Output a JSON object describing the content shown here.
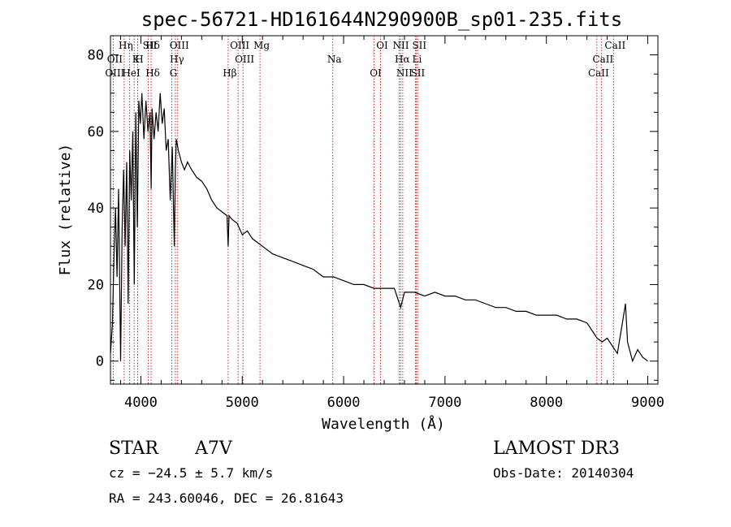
{
  "chart_data": {
    "type": "line",
    "title": "spec-56721-HD161644N290900B_sp01-235.fits",
    "xlabel": "Wavelength (Å)",
    "ylabel": "Flux (relative)",
    "xlim": [
      3700,
      9100
    ],
    "ylim": [
      -6,
      85
    ],
    "x_ticks": [
      4000,
      5000,
      6000,
      7000,
      8000,
      9000
    ],
    "y_ticks": [
      0,
      20,
      40,
      60,
      80
    ],
    "grid": false,
    "series": [
      {
        "x": [
          3700,
          3720,
          3735,
          3750,
          3765,
          3780,
          3800,
          3815,
          3830,
          3845,
          3860,
          3875,
          3890,
          3905,
          3920,
          3935,
          3950,
          3965,
          3980,
          3995,
          4010,
          4030,
          4050,
          4070,
          4090,
          4101,
          4110,
          4130,
          4150,
          4170,
          4190,
          4210,
          4230,
          4250,
          4270,
          4290,
          4310,
          4330,
          4340,
          4350,
          4370,
          4400,
          4430,
          4460,
          4500,
          4550,
          4600,
          4650,
          4700,
          4750,
          4800,
          4850,
          4861,
          4870,
          4900,
          4950,
          5000,
          5050,
          5100,
          5150,
          5200,
          5300,
          5400,
          5500,
          5600,
          5700,
          5800,
          5900,
          6000,
          6100,
          6200,
          6300,
          6400,
          6500,
          6563,
          6600,
          6700,
          6800,
          6900,
          7000,
          7100,
          7200,
          7300,
          7400,
          7500,
          7600,
          7700,
          7800,
          7900,
          8000,
          8100,
          8200,
          8300,
          8400,
          8450,
          8500,
          8550,
          8600,
          8650,
          8700,
          8750,
          8780,
          8800,
          8850,
          8900,
          8950,
          9000
        ],
        "y": [
          2,
          10,
          28,
          40,
          22,
          45,
          0,
          35,
          50,
          30,
          52,
          15,
          55,
          42,
          60,
          20,
          65,
          35,
          68,
          62,
          70,
          58,
          68,
          60,
          65,
          45,
          66,
          58,
          65,
          60,
          70,
          62,
          66,
          55,
          58,
          42,
          56,
          30,
          50,
          58,
          55,
          52,
          50,
          52,
          50,
          48,
          47,
          45,
          42,
          40,
          39,
          38,
          30,
          38,
          37,
          36,
          33,
          34,
          32,
          31,
          30,
          28,
          27,
          26,
          25,
          24,
          22,
          22,
          21,
          20,
          20,
          19,
          19,
          19,
          14,
          18,
          18,
          17,
          18,
          17,
          17,
          16,
          16,
          15,
          14,
          14,
          13,
          13,
          12,
          12,
          12,
          11,
          11,
          10,
          8,
          6,
          5,
          6,
          4,
          2,
          10,
          15,
          5,
          0,
          3,
          1,
          0
        ]
      }
    ],
    "annotations": [
      {
        "label": "Hδ",
        "x": 4101
      },
      {
        "label": "K",
        "x": 3934
      },
      {
        "label": "Hδ",
        "x": 4101
      },
      {
        "label": "OIII",
        "x": 4363
      },
      {
        "label": "OII",
        "x": 3727
      },
      {
        "label": "HeI",
        "x": 3889
      },
      {
        "label": "SII",
        "x": 4072
      },
      {
        "label": "Hγ",
        "x": 4340
      },
      {
        "label": "OIII",
        "x": 3727
      },
      {
        "label": "Hη",
        "x": 3835
      },
      {
        "label": "H",
        "x": 3968
      },
      {
        "label": "G",
        "x": 4305
      },
      {
        "label": "OIII",
        "x": 4959
      },
      {
        "label": "OIII",
        "x": 5007
      },
      {
        "label": "Hβ",
        "x": 4861
      },
      {
        "label": "Mg",
        "x": 5175
      },
      {
        "label": "Na",
        "x": 5893
      },
      {
        "label": "OI",
        "x": 6300
      },
      {
        "label": "OI",
        "x": 6364
      },
      {
        "label": "Hα",
        "x": 6563
      },
      {
        "label": "SII",
        "x": 6716
      },
      {
        "label": "NII",
        "x": 6548
      },
      {
        "label": "Li",
        "x": 6708
      },
      {
        "label": "NII",
        "x": 6583
      },
      {
        "label": "SII",
        "x": 6731
      },
      {
        "label": "CaII",
        "x": 8542
      },
      {
        "label": "CaII",
        "x": 8498
      },
      {
        "label": "CaII",
        "x": 8662
      }
    ]
  },
  "info": {
    "object_class": "STAR",
    "spectral_type": "A7V",
    "survey": "LAMOST DR3",
    "cz": "cz = −24.5 ± 5.7 km/s",
    "obs_date": "Obs-Date: 20140304",
    "coords": "RA = 243.60046, DEC =  26.81643"
  }
}
